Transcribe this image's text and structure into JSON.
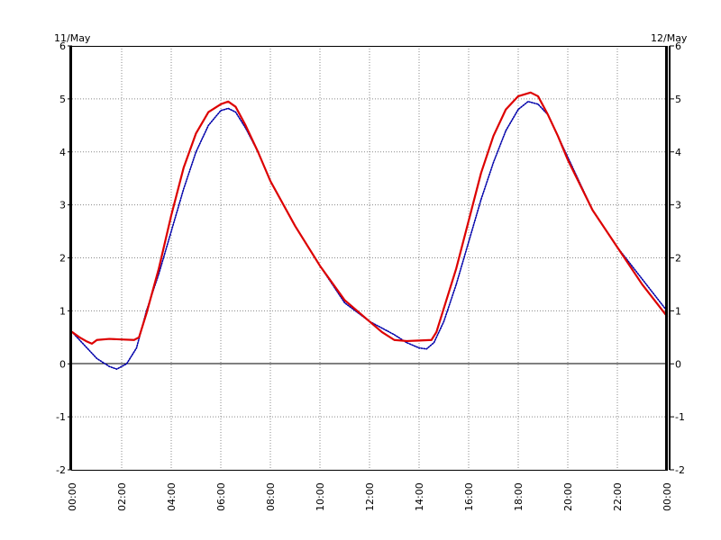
{
  "chart_data": {
    "type": "line",
    "title": "",
    "xlabel": "",
    "ylabel": "",
    "date_labels": {
      "left": "11/May",
      "right": "12/May"
    },
    "x_ticks": [
      "00:00",
      "02:00",
      "04:00",
      "06:00",
      "08:00",
      "10:00",
      "12:00",
      "14:00",
      "16:00",
      "18:00",
      "20:00",
      "22:00",
      "00:00"
    ],
    "y_ticks": [
      "6",
      "5",
      "4",
      "3",
      "2",
      "1",
      "0",
      "-1",
      "-2"
    ],
    "xlim": [
      0,
      24
    ],
    "ylim": [
      -2,
      6
    ],
    "grid": true,
    "series": [
      {
        "color": "#0000aa",
        "style": "dotted",
        "x": [
          0,
          0.5,
          1.0,
          1.5,
          1.8,
          2.2,
          2.6,
          3.0,
          3.5,
          4.0,
          4.5,
          5.0,
          5.5,
          6.0,
          6.3,
          6.6,
          7.0,
          7.5,
          8.0,
          9.0,
          10.0,
          11.0,
          12.0,
          13.0,
          13.5,
          14.0,
          14.3,
          14.6,
          15.0,
          15.5,
          16.0,
          16.5,
          17.0,
          17.5,
          18.0,
          18.4,
          18.8,
          19.2,
          19.6,
          20.0,
          21.0,
          22.0,
          23.0,
          24.0
        ],
        "y": [
          0.6,
          0.35,
          0.1,
          -0.05,
          -0.1,
          0.0,
          0.3,
          1.0,
          1.7,
          2.5,
          3.3,
          4.0,
          4.5,
          4.78,
          4.82,
          4.75,
          4.45,
          4.0,
          3.45,
          2.6,
          1.85,
          1.15,
          0.8,
          0.55,
          0.4,
          0.3,
          0.28,
          0.4,
          0.8,
          1.5,
          2.3,
          3.1,
          3.8,
          4.4,
          4.8,
          4.95,
          4.9,
          4.7,
          4.3,
          3.9,
          2.9,
          2.2,
          1.6,
          1.0
        ]
      },
      {
        "color": "#dd0000",
        "style": "solid",
        "x": [
          0,
          0.3,
          0.6,
          0.8,
          1.0,
          1.5,
          2.0,
          2.5,
          2.7,
          3.0,
          3.5,
          4.0,
          4.5,
          5.0,
          5.5,
          6.0,
          6.3,
          6.6,
          7.0,
          7.5,
          8.0,
          9.0,
          10.0,
          11.0,
          12.0,
          12.5,
          13.0,
          13.5,
          14.0,
          14.5,
          14.7,
          15.0,
          15.5,
          16.0,
          16.5,
          17.0,
          17.5,
          18.0,
          18.5,
          18.8,
          19.2,
          19.6,
          20.0,
          21.0,
          22.0,
          23.0,
          24.0
        ],
        "y": [
          0.6,
          0.5,
          0.42,
          0.38,
          0.45,
          0.47,
          0.46,
          0.45,
          0.5,
          0.95,
          1.8,
          2.8,
          3.7,
          4.35,
          4.75,
          4.9,
          4.95,
          4.85,
          4.5,
          4.0,
          3.45,
          2.6,
          1.85,
          1.2,
          0.8,
          0.6,
          0.45,
          0.43,
          0.44,
          0.45,
          0.6,
          1.05,
          1.8,
          2.7,
          3.6,
          4.3,
          4.8,
          5.05,
          5.12,
          5.05,
          4.7,
          4.3,
          3.85,
          2.9,
          2.2,
          1.5,
          0.9
        ]
      }
    ]
  }
}
